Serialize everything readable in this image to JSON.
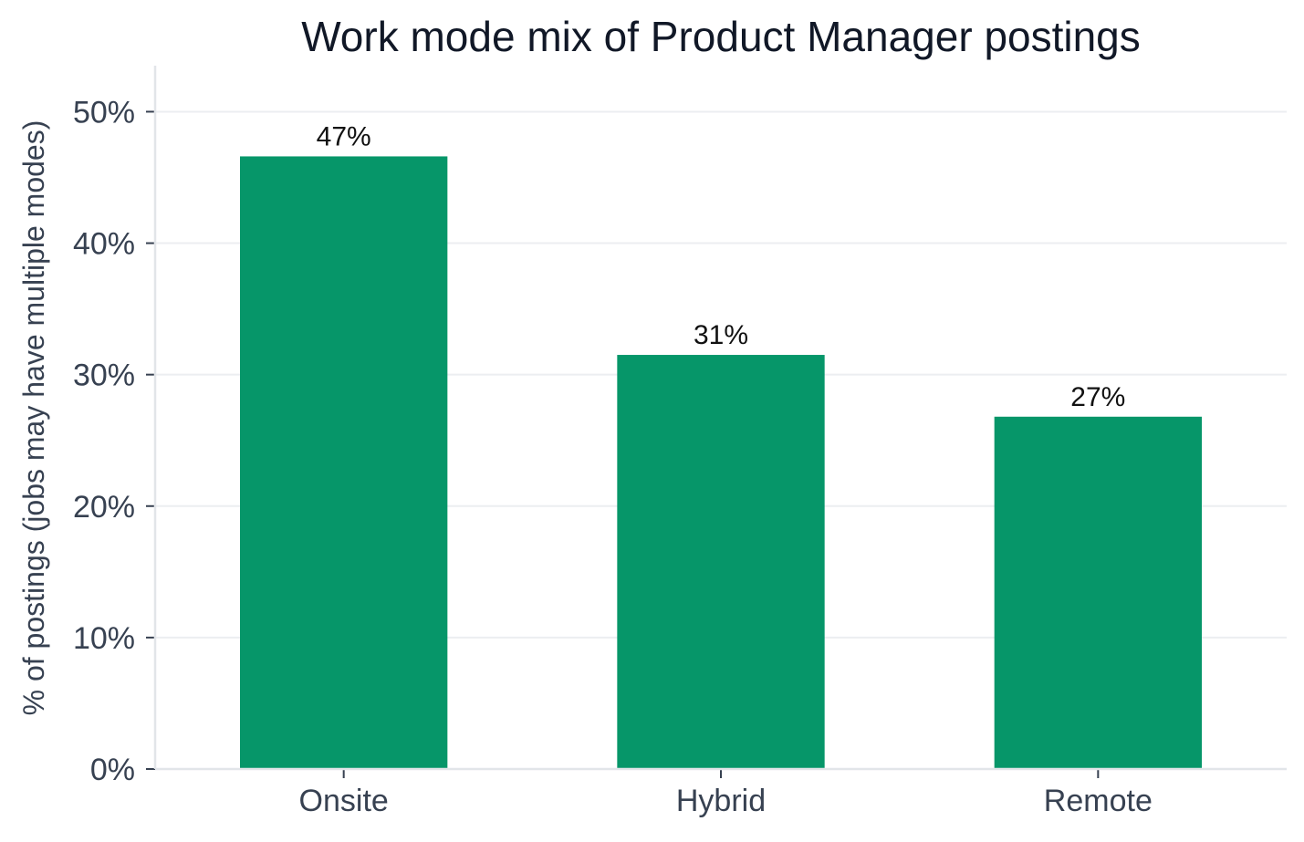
{
  "chart_data": {
    "type": "bar",
    "title": "Work mode mix of Product Manager postings",
    "xlabel": "",
    "ylabel": "% of postings (jobs may have multiple modes)",
    "categories": [
      "Onsite",
      "Hybrid",
      "Remote"
    ],
    "values": [
      46.6,
      31.5,
      26.8
    ],
    "data_labels": [
      "47%",
      "31%",
      "27%"
    ],
    "ylim": [
      0,
      53.5
    ],
    "yticks": [
      0,
      10,
      20,
      30,
      40,
      50
    ],
    "ytick_labels": [
      "0%",
      "10%",
      "20%",
      "30%",
      "40%",
      "50%"
    ],
    "grid": true,
    "legend": "none",
    "colors": {
      "bar": "#069669"
    }
  }
}
